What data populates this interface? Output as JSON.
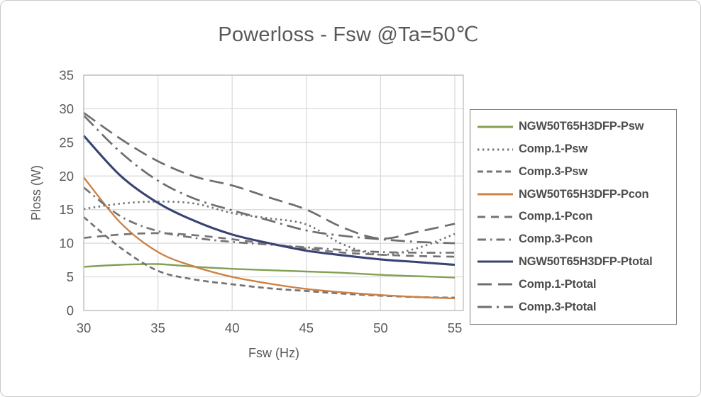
{
  "window": {
    "background": "#ffffff",
    "frame_border_color": "#c9c9c9"
  },
  "chart_data": {
    "type": "line",
    "title": "Powerloss - Fsw @Ta=50℃",
    "xlabel": "Fsw (Hz)",
    "ylabel": "Ploss (W)",
    "xlim": [
      30,
      55
    ],
    "ylim": [
      0,
      35
    ],
    "xticks": [
      30,
      35,
      40,
      45,
      50,
      55
    ],
    "yticks": [
      0,
      5,
      10,
      15,
      20,
      25,
      30,
      35
    ],
    "grid": true,
    "legend_position": "right",
    "x": [
      30,
      32.5,
      35,
      37.5,
      40,
      42.5,
      45,
      47.5,
      50,
      52.5,
      55
    ],
    "series": [
      {
        "name": "NGW50T65H3DFP-Psw",
        "color": "#82a054",
        "style": "solid",
        "values": [
          6.5,
          6.8,
          6.9,
          6.5,
          6.2,
          6.0,
          5.8,
          5.6,
          5.3,
          5.1,
          4.9
        ]
      },
      {
        "name": "Comp.1-Psw",
        "color": "#747474",
        "style": "dotted",
        "values": [
          15.1,
          15.9,
          16.2,
          15.9,
          14.5,
          13.7,
          12.8,
          9.8,
          8.3,
          9.3,
          11.4
        ]
      },
      {
        "name": "Comp.3-Psw",
        "color": "#747474",
        "style": "short-dash",
        "values": [
          13.9,
          9.3,
          5.9,
          4.6,
          3.9,
          3.3,
          2.9,
          2.5,
          2.2,
          2.0,
          1.9
        ]
      },
      {
        "name": "NGW50T65H3DFP-Pcon",
        "color": "#cd8144",
        "style": "solid",
        "values": [
          19.8,
          13.0,
          8.7,
          6.5,
          5.0,
          4.0,
          3.2,
          2.7,
          2.3,
          2.0,
          1.8
        ]
      },
      {
        "name": "Comp.1-Pcon",
        "color": "#747474",
        "style": "medium-dash",
        "values": [
          10.8,
          11.3,
          11.5,
          11.2,
          10.6,
          9.9,
          9.2,
          8.6,
          8.3,
          8.1,
          8.0
        ]
      },
      {
        "name": "Comp.3-Pcon",
        "color": "#747474",
        "style": "dash-dot",
        "values": [
          18.3,
          14.0,
          11.8,
          10.8,
          10.2,
          9.8,
          9.4,
          9.0,
          8.7,
          8.6,
          8.6
        ]
      },
      {
        "name": "NGW50T65H3DFP-Ptotal",
        "color": "#394373",
        "style": "solid",
        "values": [
          26.0,
          20.0,
          16.0,
          13.3,
          11.3,
          10.0,
          8.9,
          8.2,
          7.6,
          7.2,
          6.8
        ]
      },
      {
        "name": "Comp.1-Ptotal",
        "color": "#6e6e6e",
        "style": "long-dash",
        "values": [
          29.4,
          25.5,
          22.2,
          19.9,
          18.6,
          16.8,
          15.0,
          12.3,
          10.7,
          11.7,
          12.9
        ]
      },
      {
        "name": "Comp.3-Ptotal",
        "color": "#6e6e6e",
        "style": "long-dash-dot",
        "values": [
          29.0,
          23.5,
          19.3,
          16.6,
          14.9,
          13.4,
          11.9,
          11.1,
          10.6,
          10.2,
          10.0
        ]
      }
    ]
  },
  "style_colors": {
    "grid": "#d8d8d8",
    "plot_border": "#bdbdbd",
    "tick_label": "#595959",
    "axis_title": "#595959",
    "legend_border": "#808080",
    "legend_text": "#4d4d4d"
  }
}
